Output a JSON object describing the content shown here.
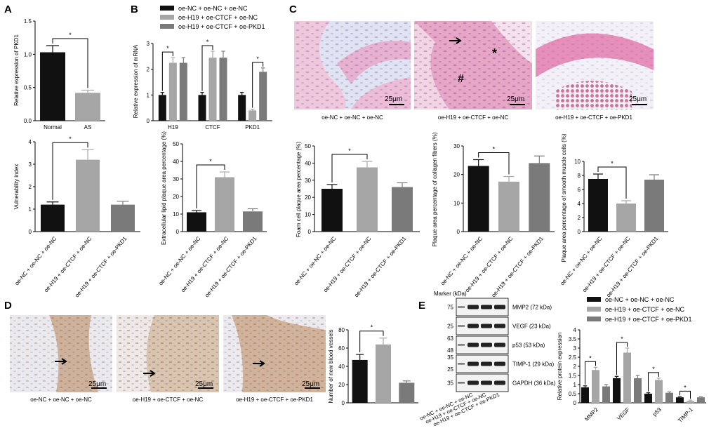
{
  "panel_labels": [
    "A",
    "B",
    "C",
    "D",
    "E"
  ],
  "colors": {
    "black": "#111111",
    "light_gray": "#a6a6a6",
    "dark_gray": "#7a7a7a"
  },
  "scale_bar_label": "25μm",
  "groups": {
    "g1": "oe-NC + oe-NC + oe-NC",
    "g2": "oe-H19 + oe-CTCF + oe-NC",
    "g3": "oe-H19 + oe-CTCF + oe-PKD1"
  },
  "legend_B": [
    "oe-NC + oe-NC + oe-NC",
    "oe-H19 + oe-CTCF + oe-NC",
    "oe-H19 + oe-CTCF + oe-PKD1"
  ],
  "legend_E": [
    "oe-NC + oe-NC + oe-NC",
    "oe-H19 + oe-CTCF + oe-NC",
    "oe-H19 + oe-CTCF + oe-PKD1"
  ],
  "micrograph_C_captions": [
    "oe-NC + oe-NC + oe-NC",
    "oe-H19 + oe-CTCF + oe-NC",
    "oe-H19 + oe-CTCF + oe-PKD1"
  ],
  "micrograph_D_captions": [
    "oe-NC + oe-NC + oe-NC",
    "oe-H19 + oe-CTCF + oe-NC",
    "oe-H19 + oe-CTCF + oe-PKD1"
  ],
  "micrograph_C_marks": [
    "*",
    "#"
  ],
  "blot": {
    "marker_title": "Marker (kDa)",
    "rows": [
      {
        "markers": [
          "75"
        ],
        "label": "MMP2 (72 kDa)"
      },
      {
        "markers": [
          "25"
        ],
        "label": "VEGF (23 kDa)"
      },
      {
        "markers": [
          "63",
          "48"
        ],
        "label": "p53 (53 kDa)"
      },
      {
        "markers": [
          "35",
          "25"
        ],
        "label": "TIMP-1 (29 kDa)"
      },
      {
        "markers": [
          "35"
        ],
        "label": "GAPDH (36 kDa)"
      }
    ],
    "lane_labels": [
      "oe-NC + oe-NC + oe-NC",
      "oe-H19 + oe-CTCF + oe-NC",
      "oe-H19 + oe-CTCF + oe-PKD1"
    ]
  },
  "chart_data": [
    {
      "id": "A1",
      "panel": "A",
      "type": "bar",
      "categories": [
        "Normal",
        "AS"
      ],
      "values": [
        1.03,
        0.42
      ],
      "errors": [
        0.1,
        0.04
      ],
      "ylabel": "Relative expression of PKD1",
      "ylim": [
        0,
        1.5
      ],
      "yticks": [
        "0.0",
        "0.5",
        "1.0",
        "1.5"
      ],
      "significance": [
        {
          "pair": [
            0,
            1
          ],
          "label": "*"
        }
      ],
      "rotate_labels": false
    },
    {
      "id": "A2",
      "panel": "A",
      "type": "bar",
      "categories": [
        "oe-NC + oe-NC + oe-NC",
        "oe-H19 + oe-CTCF + oe-NC",
        "oe-H19 + oe-CTCF + oe-PKD1"
      ],
      "values": [
        1.2,
        3.2,
        1.2
      ],
      "errors": [
        0.12,
        0.45,
        0.15
      ],
      "ylabel": "Vulnerability index",
      "ylim": [
        0,
        4
      ],
      "yticks": [
        "0",
        "1",
        "2",
        "3",
        "4"
      ],
      "significance": [
        {
          "pair": [
            0,
            1
          ],
          "label": "*"
        }
      ],
      "rotate_labels": true
    },
    {
      "id": "B1",
      "panel": "B",
      "type": "bar",
      "categories": [
        "H19",
        "CTCF",
        "PKD1"
      ],
      "series": [
        {
          "name": "oe-NC + oe-NC + oe-NC",
          "values": [
            1.0,
            1.0,
            1.0
          ],
          "errors": [
            0.1,
            0.1,
            0.1
          ]
        },
        {
          "name": "oe-H19 + oe-CTCF + oe-NC",
          "values": [
            2.25,
            2.45,
            0.4
          ],
          "errors": [
            0.2,
            0.25,
            0.05
          ]
        },
        {
          "name": "oe-H19 + oe-CTCF + oe-PKD1",
          "values": [
            2.25,
            2.45,
            1.9
          ],
          "errors": [
            0.2,
            0.25,
            0.15
          ]
        }
      ],
      "ylabel": "Relative expression of mRNA",
      "ylim": [
        0,
        3
      ],
      "yticks": [
        "0",
        "1",
        "2",
        "3"
      ],
      "significance": [
        {
          "group": 0,
          "pair": [
            0,
            1
          ],
          "label": "*"
        },
        {
          "group": 1,
          "pair": [
            0,
            1
          ],
          "label": "*"
        },
        {
          "group": 2,
          "pair": [
            1,
            2
          ],
          "label": "*"
        }
      ]
    },
    {
      "id": "B2",
      "panel": "B",
      "type": "bar",
      "categories": [
        "oe-NC + oe-NC + oe-NC",
        "oe-H19 + oe-CTCF + oe-NC",
        "oe-H19 + oe-CTCF + oe-PKD1"
      ],
      "values": [
        11,
        31,
        11.5
      ],
      "errors": [
        1,
        3,
        1.5
      ],
      "ylabel": "Extracellular lipid plaque area percentage (%)",
      "ylim": [
        0,
        50
      ],
      "yticks": [
        "0",
        "10",
        "20",
        "30",
        "40",
        "50"
      ],
      "significance": [
        {
          "pair": [
            0,
            1
          ],
          "label": "*"
        }
      ],
      "rotate_labels": true
    },
    {
      "id": "C1",
      "panel": "C",
      "type": "bar",
      "categories": [
        "oe-NC + oe-NC + oe-NC",
        "oe-H19 + oe-CTCF + oe-NC",
        "oe-H19 + oe-CTCF + oe-PKD1"
      ],
      "values": [
        25,
        37.5,
        26
      ],
      "errors": [
        2.5,
        3.5,
        2.5
      ],
      "ylabel": "Foam cell plaque area percentage (%)",
      "ylim": [
        0,
        50
      ],
      "yticks": [
        "0",
        "10",
        "20",
        "30",
        "40",
        "50"
      ],
      "significance": [
        {
          "pair": [
            0,
            1
          ],
          "label": "*"
        }
      ],
      "rotate_labels": true
    },
    {
      "id": "C2",
      "panel": "C",
      "type": "bar",
      "categories": [
        "oe-NC + oe-NC + oe-NC",
        "oe-H19 + oe-CTCF + oe-NC",
        "oe-H19 + oe-CTCF + oe-PKD1"
      ],
      "values": [
        23,
        17.5,
        24
      ],
      "errors": [
        2.2,
        1.8,
        2.5
      ],
      "ylabel": "Plaque area percentage of collagen fibers (%)",
      "ylim": [
        0,
        30
      ],
      "yticks": [
        "0",
        "10",
        "20",
        "30"
      ],
      "significance": [
        {
          "pair": [
            0,
            1
          ],
          "label": "*"
        }
      ],
      "rotate_labels": true
    },
    {
      "id": "C3",
      "panel": "C",
      "type": "bar",
      "categories": [
        "oe-NC + oe-NC + oe-NC",
        "oe-H19 + oe-CTCF + oe-NC",
        "oe-H19 + oe-CTCF + oe-PKD1"
      ],
      "values": [
        7.5,
        4.0,
        7.4
      ],
      "errors": [
        0.7,
        0.4,
        0.7
      ],
      "ylabel": "Plaque area percentage of smooth muscle cells (%)",
      "ylim": [
        0,
        10
      ],
      "yticks": [
        "0",
        "2",
        "4",
        "6",
        "8",
        "10"
      ],
      "significance": [
        {
          "pair": [
            0,
            1
          ],
          "label": "*"
        }
      ],
      "rotate_labels": true
    },
    {
      "id": "D1",
      "panel": "D",
      "type": "bar",
      "categories": [
        "oe-NC + oe-NC + oe-NC",
        "oe-H19 + oe-CTCF + oe-NC",
        "oe-H19 + oe-CTCF + oe-PKD1"
      ],
      "values": [
        47,
        64,
        22
      ],
      "errors": [
        6,
        7,
        2
      ],
      "ylabel": "Number of new blood vessels",
      "ylim": [
        0,
        80
      ],
      "yticks": [
        "0",
        "20",
        "40",
        "60",
        "80"
      ],
      "significance": [
        {
          "pair": [
            0,
            1
          ],
          "label": "*"
        }
      ],
      "rotate_labels": false
    },
    {
      "id": "E1",
      "panel": "E",
      "type": "bar",
      "categories": [
        "MMP2",
        "VEGF",
        "p53",
        "TIMP-1"
      ],
      "series": [
        {
          "name": "oe-NC + oe-NC + oe-NC",
          "values": [
            0.85,
            1.35,
            0.5,
            0.3
          ],
          "errors": [
            0.08,
            0.1,
            0.05,
            0.03
          ]
        },
        {
          "name": "oe-H19 + oe-CTCF + oe-NC",
          "values": [
            1.8,
            2.75,
            1.25,
            0.1
          ],
          "errors": [
            0.15,
            0.25,
            0.1,
            0.05
          ]
        },
        {
          "name": "oe-H19 + oe-CTCF + oe-PKD1",
          "values": [
            0.9,
            1.35,
            0.55,
            0.3
          ],
          "errors": [
            0.1,
            0.15,
            0.05,
            0.03
          ]
        }
      ],
      "ylabel": "Relative protein expression",
      "ylim": [
        0,
        4
      ],
      "yticks": [
        "0",
        "0.5",
        "1",
        "1.5",
        "2",
        "2.5",
        "3",
        "3.5",
        "4"
      ],
      "significance": [
        {
          "group": 0,
          "pair": [
            0,
            1
          ],
          "label": "*"
        },
        {
          "group": 1,
          "pair": [
            0,
            1
          ],
          "label": "*"
        },
        {
          "group": 2,
          "pair": [
            0,
            1
          ],
          "label": "*"
        },
        {
          "group": 3,
          "pair": [
            0,
            1
          ],
          "label": "*"
        }
      ]
    }
  ]
}
